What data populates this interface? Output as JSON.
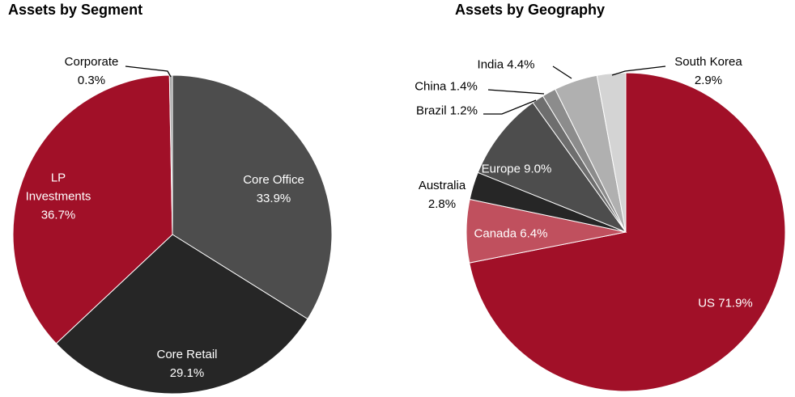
{
  "chart_data": [
    {
      "type": "pie",
      "title": "Assets by Segment",
      "categories": [
        "Core Office",
        "Core Retail",
        "LP Investments",
        "Corporate"
      ],
      "values": [
        33.9,
        29.1,
        36.7,
        0.3
      ],
      "value_labels": [
        "33.9%",
        "29.1%",
        "36.7%",
        "0.3%"
      ],
      "colors": [
        "#4d4d4d",
        "#262626",
        "#a11028",
        "#a6a6a6"
      ]
    },
    {
      "type": "pie",
      "title": "Assets by Geography",
      "categories": [
        "US",
        "Canada",
        "Australia",
        "Europe",
        "Brazil",
        "China",
        "India",
        "South Korea"
      ],
      "values": [
        71.9,
        6.4,
        2.8,
        9.0,
        1.2,
        1.4,
        4.4,
        2.9
      ],
      "value_labels": [
        "71.9%",
        "6.4%",
        "2.8%",
        "9.0%",
        "1.2%",
        "1.4%",
        "4.4%",
        "2.9%"
      ],
      "colors": [
        "#a11028",
        "#c0505e",
        "#262626",
        "#4d4d4d",
        "#6e6e6e",
        "#8c8c8c",
        "#b0b0b0",
        "#d4d4d4"
      ]
    }
  ]
}
